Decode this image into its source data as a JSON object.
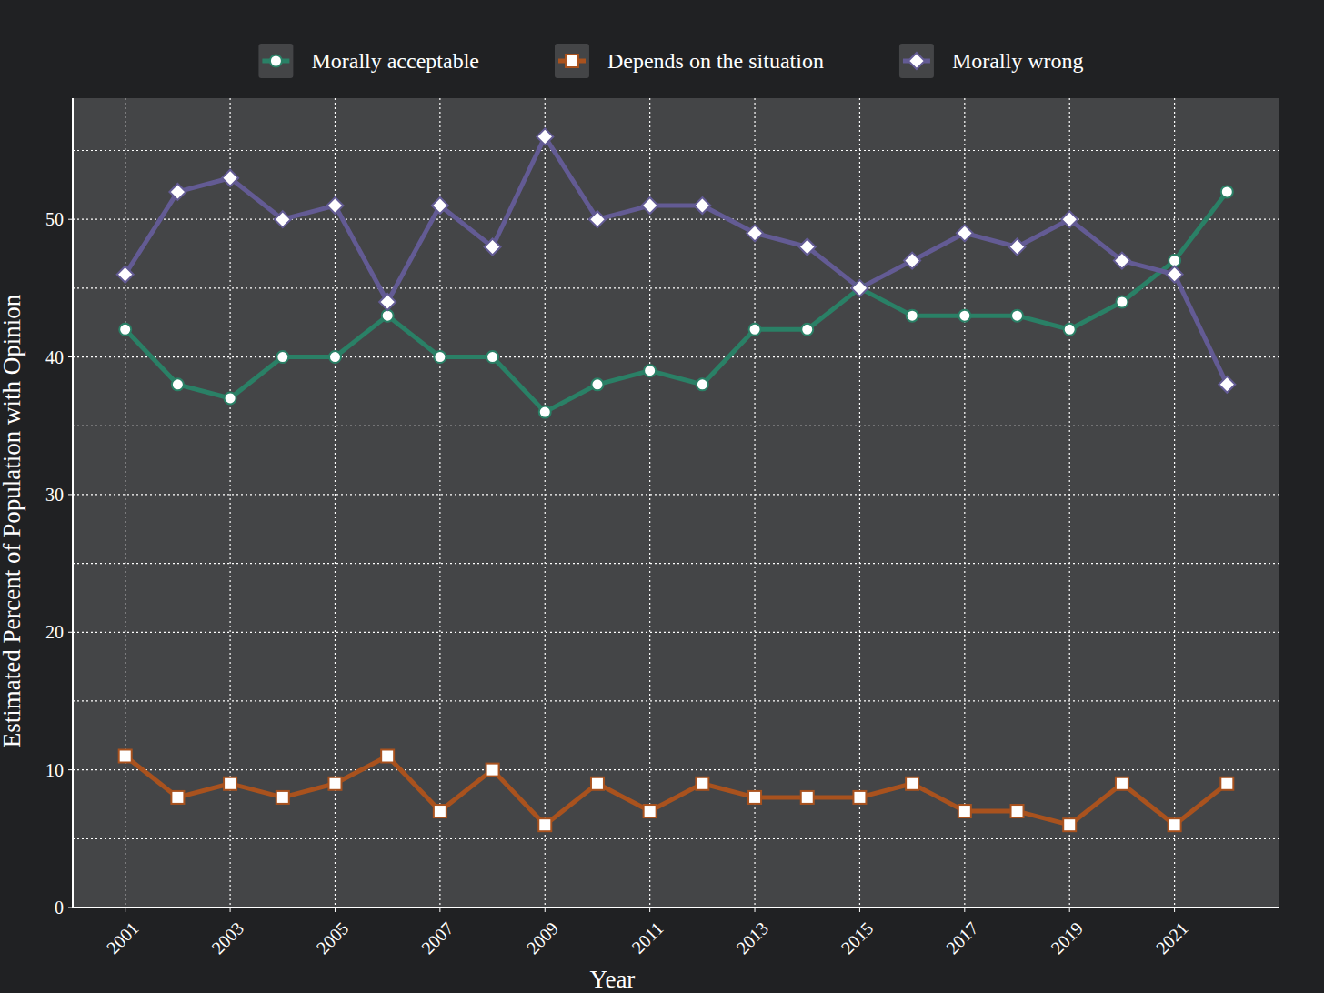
{
  "chart_data": {
    "type": "line",
    "x_label": "Year",
    "y_label": "Estimated Percent of Population with Opinion",
    "x": [
      2001,
      2002,
      2003,
      2004,
      2005,
      2006,
      2007,
      2008,
      2009,
      2010,
      2011,
      2012,
      2013,
      2014,
      2015,
      2016,
      2017,
      2018,
      2019,
      2020,
      2021,
      2022
    ],
    "series": [
      {
        "name": "Morally acceptable",
        "color": "#2a8066",
        "marker": "circle",
        "values": [
          42,
          38,
          37,
          40,
          40,
          43,
          40,
          40,
          36,
          38,
          39,
          38,
          42,
          42,
          45,
          43,
          43,
          43,
          42,
          44,
          47,
          52
        ]
      },
      {
        "name": "Depends on the situation",
        "color": "#a9521e",
        "marker": "square",
        "values": [
          11,
          8,
          9,
          8,
          9,
          11,
          7,
          10,
          6,
          9,
          7,
          9,
          8,
          8,
          8,
          9,
          7,
          7,
          6,
          9,
          6,
          9
        ]
      },
      {
        "name": "Morally wrong",
        "color": "#635b94",
        "marker": "diamond",
        "values": [
          46,
          52,
          53,
          50,
          51,
          44,
          51,
          48,
          56,
          50,
          51,
          51,
          49,
          48,
          45,
          47,
          49,
          48,
          50,
          47,
          46,
          38
        ]
      }
    ],
    "xlim": [
      2000,
      2023
    ],
    "xticks": [
      2001,
      2003,
      2005,
      2007,
      2009,
      2011,
      2013,
      2015,
      2017,
      2019,
      2021
    ],
    "ylim": [
      0,
      58.8
    ],
    "yticks": [
      0,
      10,
      20,
      30,
      40,
      50
    ],
    "grid": true,
    "legend": "top"
  }
}
